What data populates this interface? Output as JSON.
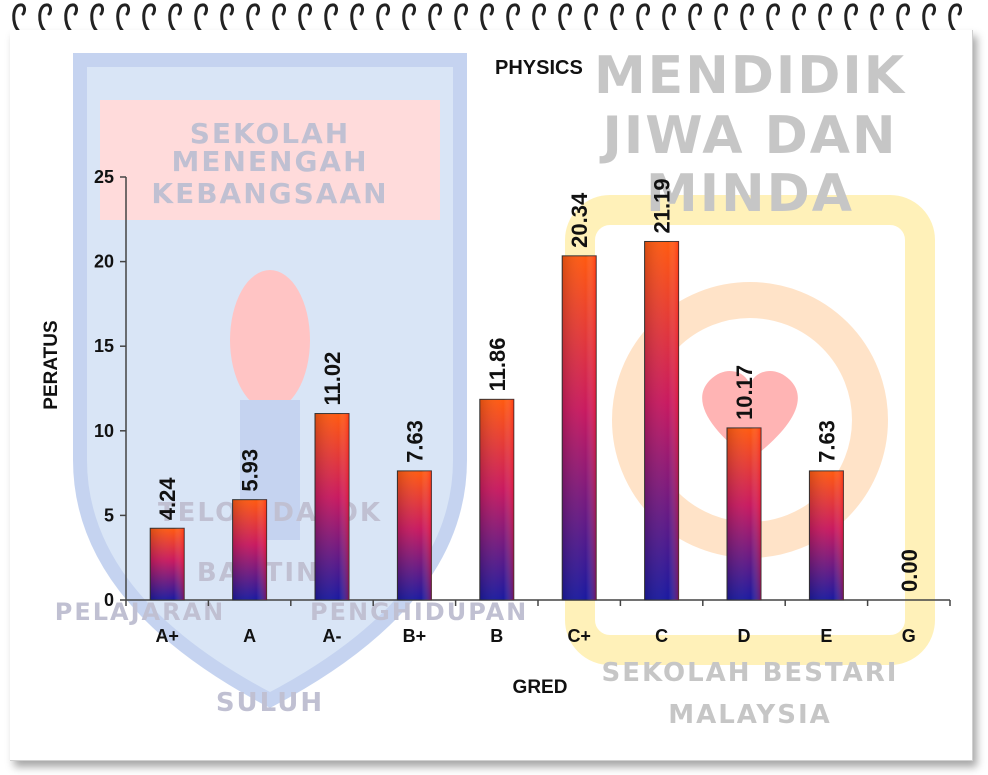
{
  "watermark": {
    "left_lines": [
      "SEKOLAH MENENGAH",
      "KEBANGSAAN",
      "TELOK DATOK",
      "BANTING",
      "PELAJARAN",
      "SULUH",
      "PENGHIDUPAN"
    ],
    "right_lines": [
      "MENDIDIK",
      "JIWA DAN",
      "MINDA",
      "SEKOLAH BESTARI",
      "MALAYSIA"
    ]
  },
  "chart_data": {
    "type": "bar",
    "title": "PHYSICS",
    "xlabel": "GRED",
    "ylabel": "PERATUS",
    "categories": [
      "A+",
      "A",
      "A-",
      "B+",
      "B",
      "C+",
      "C",
      "D",
      "E",
      "G"
    ],
    "values": [
      4.24,
      5.93,
      11.02,
      7.63,
      11.86,
      20.34,
      21.19,
      10.17,
      7.63,
      0.0
    ],
    "value_labels": [
      "4.24",
      "5.93",
      "11.02",
      "7.63",
      "11.86",
      "20.34",
      "21.19",
      "10.17",
      "7.63",
      "0.00"
    ],
    "ylim": [
      0,
      25
    ],
    "yticks": [
      "0",
      "5",
      "10",
      "15",
      "20",
      "25"
    ],
    "grid": false,
    "legend": "none",
    "colors": {
      "bar_top": "#ff4a10",
      "bar_mid": "#c01a6a",
      "bar_bottom": "#1a1a9e",
      "axis": "#444444"
    }
  }
}
